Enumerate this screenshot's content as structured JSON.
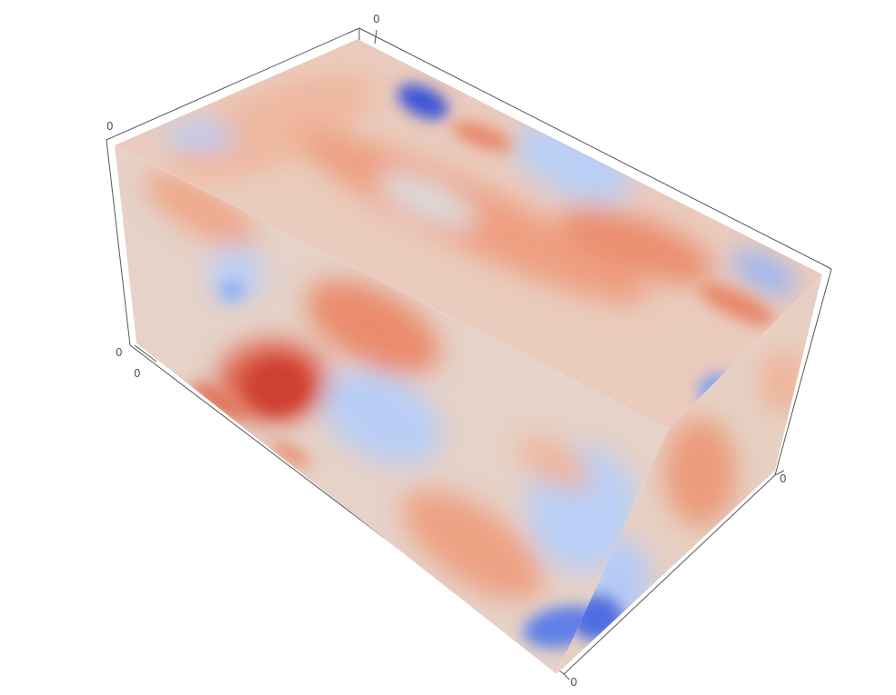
{
  "chart_data": {
    "type": "volume-slice-3d",
    "title": "",
    "colormap": "coolwarm",
    "colors": {
      "cold_strong": "#3a55d6",
      "cold": "#6f8ff0",
      "cold_light": "#b7cdf5",
      "neutral": "#dcdcdc",
      "warm_light": "#f0c3ac",
      "warm": "#eb8f6f",
      "warm_strong": "#d0473a",
      "frame": "#555555"
    },
    "axes": {
      "x": {
        "label": "",
        "ticks": [
          "0"
        ]
      },
      "y": {
        "label": "",
        "ticks": [
          "0"
        ]
      },
      "z": {
        "label": "",
        "ticks": [
          "0",
          "0"
        ]
      },
      "extra_ticks": [
        "0",
        "0"
      ]
    },
    "grid": false,
    "legend": "none"
  }
}
